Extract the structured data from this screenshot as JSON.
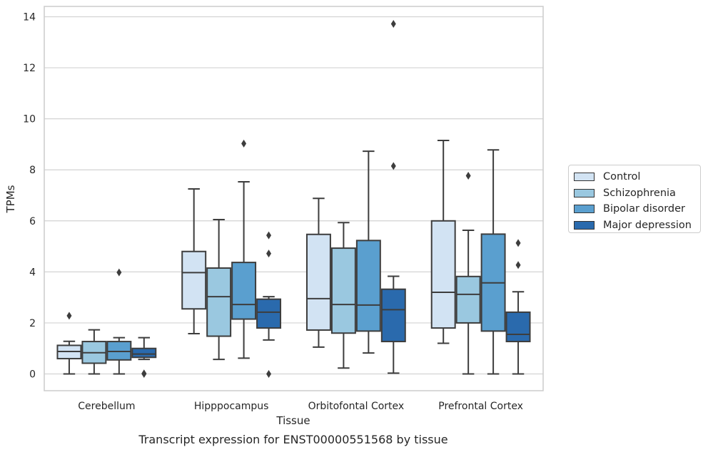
{
  "chart_data": {
    "type": "box",
    "title": "Transcript expression for ENST00000551568 by tissue",
    "xlabel": "Tissue",
    "ylabel": "TPMs",
    "ylim": [
      -0.65,
      14.4
    ],
    "yticks": [
      0,
      2,
      4,
      6,
      8,
      10,
      12,
      14
    ],
    "grid": true,
    "legend_placement": "right",
    "categories": [
      "Cerebellum",
      "Hipppocampus",
      "Orbitofontal Cortex",
      "Prefrontal Cortex"
    ],
    "series": [
      {
        "name": "Control",
        "color": "#d2e3f3",
        "boxes": [
          {
            "whislo": 0.0,
            "q1": 0.6,
            "med": 0.88,
            "q3": 1.12,
            "whishi": 1.28,
            "fliers": [
              2.28
            ]
          },
          {
            "whislo": 1.58,
            "q1": 2.55,
            "med": 3.97,
            "q3": 4.8,
            "whishi": 7.25,
            "fliers": []
          },
          {
            "whislo": 1.05,
            "q1": 1.72,
            "med": 2.95,
            "q3": 5.47,
            "whishi": 6.88,
            "fliers": []
          },
          {
            "whislo": 1.2,
            "q1": 1.8,
            "med": 3.2,
            "q3": 6.0,
            "whishi": 9.15,
            "fliers": []
          }
        ]
      },
      {
        "name": "Schizophrenia",
        "color": "#9ac8e0",
        "boxes": [
          {
            "whislo": 0.0,
            "q1": 0.42,
            "med": 0.83,
            "q3": 1.27,
            "whishi": 1.73,
            "fliers": []
          },
          {
            "whislo": 0.57,
            "q1": 1.48,
            "med": 3.03,
            "q3": 4.15,
            "whishi": 6.05,
            "fliers": []
          },
          {
            "whislo": 0.23,
            "q1": 1.6,
            "med": 2.72,
            "q3": 4.93,
            "whishi": 5.93,
            "fliers": []
          },
          {
            "whislo": 0.0,
            "q1": 2.0,
            "med": 3.12,
            "q3": 3.82,
            "whishi": 5.63,
            "fliers": [
              7.77
            ]
          }
        ]
      },
      {
        "name": "Bipolar disorder",
        "color": "#5a9fcf",
        "boxes": [
          {
            "whislo": 0.0,
            "q1": 0.55,
            "med": 0.88,
            "q3": 1.27,
            "whishi": 1.42,
            "fliers": [
              3.98
            ]
          },
          {
            "whislo": 0.62,
            "q1": 2.15,
            "med": 2.72,
            "q3": 4.37,
            "whishi": 7.53,
            "fliers": [
              9.03
            ]
          },
          {
            "whislo": 0.82,
            "q1": 1.68,
            "med": 2.7,
            "q3": 5.23,
            "whishi": 8.73,
            "fliers": []
          },
          {
            "whislo": 0.0,
            "q1": 1.68,
            "med": 3.57,
            "q3": 5.48,
            "whishi": 8.78,
            "fliers": []
          }
        ]
      },
      {
        "name": "Major depression",
        "color": "#2a6aad",
        "boxes": [
          {
            "whislo": 0.57,
            "q1": 0.65,
            "med": 0.78,
            "q3": 1.0,
            "whishi": 1.42,
            "fliers": [
              0.0,
              0.02
            ]
          },
          {
            "whislo": 1.33,
            "q1": 1.8,
            "med": 2.42,
            "q3": 2.93,
            "whishi": 3.03,
            "fliers": [
              0.0,
              4.72,
              5.43
            ]
          },
          {
            "whislo": 0.03,
            "q1": 1.27,
            "med": 2.52,
            "q3": 3.32,
            "whishi": 3.83,
            "fliers": [
              8.15,
              13.72
            ]
          },
          {
            "whislo": 0.0,
            "q1": 1.27,
            "med": 1.55,
            "q3": 2.42,
            "whishi": 3.22,
            "fliers": [
              4.27,
              5.13
            ]
          }
        ]
      }
    ]
  }
}
